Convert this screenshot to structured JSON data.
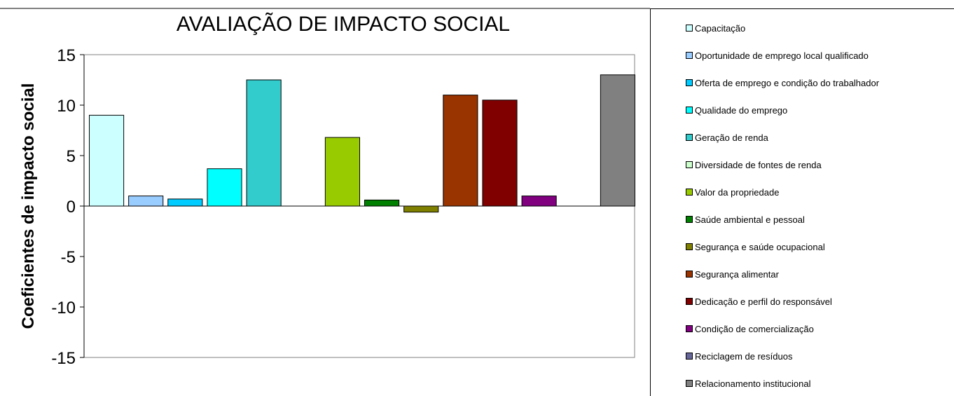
{
  "chart_data": {
    "type": "bar",
    "title": "AVALIAÇÃO DE IMPACTO SOCIAL",
    "ylabel": "Coeficientes de impacto social",
    "xlabel": "",
    "ylim": [
      -15,
      15
    ],
    "yticks": [
      15,
      10,
      5,
      0,
      -5,
      -10,
      -15
    ],
    "grid": false,
    "legend_position": "right",
    "series": [
      {
        "name": "Capacitação",
        "value": 9.0,
        "color": "#ccffff"
      },
      {
        "name": "Oportunidade de emprego local qualificado",
        "value": 1.0,
        "color": "#99ccff"
      },
      {
        "name": "Oferta de emprego e condição do trabalhador",
        "value": 0.7,
        "color": "#00ccff"
      },
      {
        "name": "Qualidade do emprego",
        "value": 3.7,
        "color": "#00ffff"
      },
      {
        "name": "Geração de renda",
        "value": 12.5,
        "color": "#33cccc"
      },
      {
        "name": "Diversidade de fontes de renda",
        "value": 0,
        "color": "#ccffcc"
      },
      {
        "name": "Valor da propriedade",
        "value": 6.8,
        "color": "#99cc00"
      },
      {
        "name": "Saúde ambiental e pessoal",
        "value": 0.6,
        "color": "#008000"
      },
      {
        "name": "Segurança e saúde ocupacional",
        "value": -0.6,
        "color": "#808000"
      },
      {
        "name": "Segurança alimentar",
        "value": 11.0,
        "color": "#993300"
      },
      {
        "name": "Dedicação e perfil do responsável",
        "value": 10.5,
        "color": "#800000"
      },
      {
        "name": "Condição de comercialização",
        "value": 1.0,
        "color": "#800080"
      },
      {
        "name": "Reciclagem de resíduos",
        "value": 0,
        "color": "#666699"
      },
      {
        "name": "Relacionamento institucional",
        "value": 13.0,
        "color": "#808080"
      }
    ]
  }
}
